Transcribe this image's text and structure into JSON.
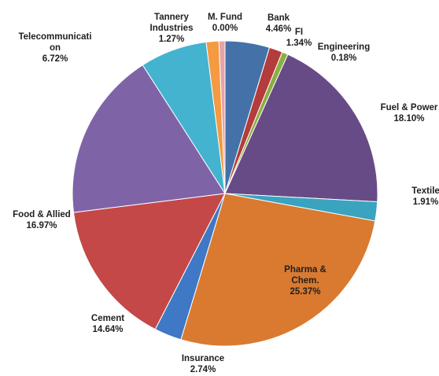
{
  "chart_data": {
    "type": "pie",
    "slices": [
      {
        "name": "Bank",
        "value": 4.46,
        "value_label": "4.46%",
        "color": "#4472a8",
        "label_lines": [
          "Bank",
          "4.46%"
        ]
      },
      {
        "name": "FI",
        "value": 1.34,
        "value_label": "1.34%",
        "color": "#b33c3c",
        "label_lines": [
          "FI",
          "1.34%"
        ]
      },
      {
        "name": "Engineering",
        "value": 0.18,
        "value_label": "0.18%",
        "color": "#8bae42",
        "label_lines": [
          "Engineering",
          "0.18%"
        ]
      },
      {
        "name": "Fuel & Power",
        "value": 18.1,
        "value_label": "18.10%",
        "color": "#674b86",
        "label_lines": [
          "Fuel & Power",
          "18.10%"
        ]
      },
      {
        "name": "Textile",
        "value": 1.91,
        "value_label": "1.91%",
        "color": "#3aa3bf",
        "label_lines": [
          "Textile",
          "1.91%"
        ]
      },
      {
        "name": "Pharma & Chem.",
        "value": 25.37,
        "value_label": "25.37%",
        "color": "#d97a30",
        "label_lines": [
          "Pharma &",
          "Chem.",
          "25.37%"
        ]
      },
      {
        "name": "Insurance",
        "value": 2.74,
        "value_label": "2.74%",
        "color": "#3f78c4",
        "label_lines": [
          "Insurance",
          "2.74%"
        ]
      },
      {
        "name": "Cement",
        "value": 14.64,
        "value_label": "14.64%",
        "color": "#c44848",
        "label_lines": [
          "Cement",
          "14.64%"
        ]
      },
      {
        "name": "Food & Allied",
        "value": 16.97,
        "value_label": "16.97%",
        "color": "#7f63a7",
        "label_lines": [
          "Food & Allied",
          "16.97%"
        ]
      },
      {
        "name": "Telecommunication",
        "value": 6.72,
        "value_label": "6.72%",
        "color": "#43b3cf",
        "label_lines": [
          "Telecommunicati",
          "on",
          "6.72%"
        ]
      },
      {
        "name": "Tannery Industries",
        "value": 1.27,
        "value_label": "1.27%",
        "color": "#f39a42",
        "label_lines": [
          "Tannery",
          "Industries",
          "1.27%"
        ]
      },
      {
        "name": "M. Fund",
        "value": 0.0,
        "value_label": "0.00%",
        "color": "#e4a3a9",
        "label_lines": [
          "M. Fund",
          "0.00%"
        ]
      }
    ]
  }
}
